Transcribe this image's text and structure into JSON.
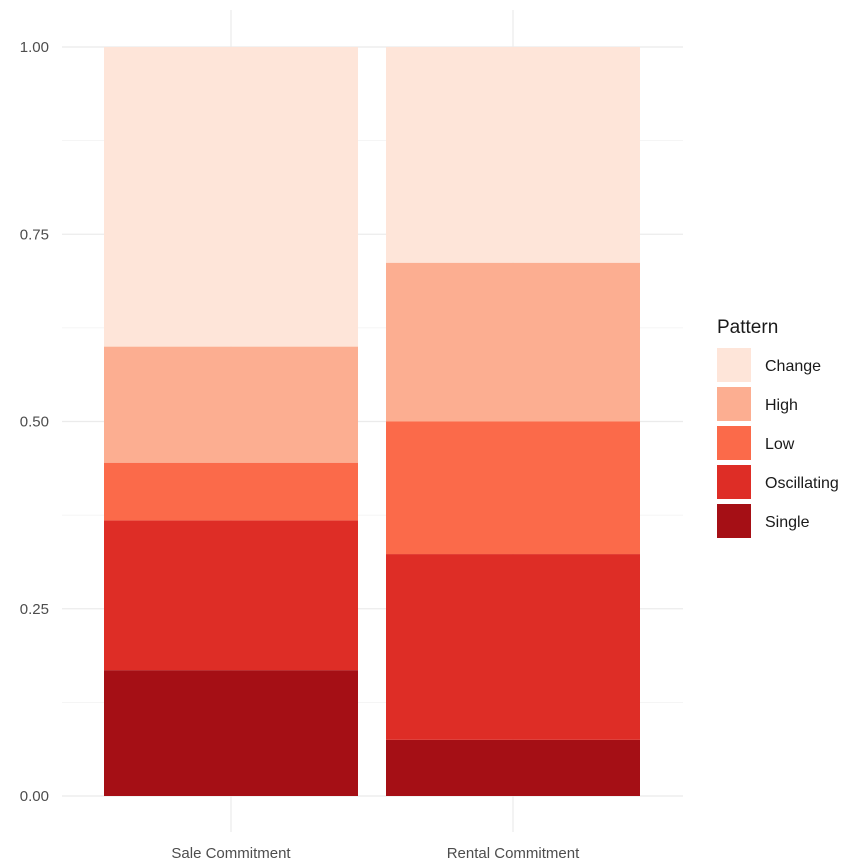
{
  "chart_data": {
    "type": "bar",
    "stacked": true,
    "categories": [
      "Sale Commitment",
      "Rental Commitment"
    ],
    "series": [
      {
        "name": "Single",
        "color": "#a50f15",
        "values": [
          0.168,
          0.075
        ]
      },
      {
        "name": "Oscillating",
        "color": "#de2d26",
        "values": [
          0.2,
          0.248
        ]
      },
      {
        "name": "Low",
        "color": "#fb6a4a",
        "values": [
          0.077,
          0.177
        ]
      },
      {
        "name": "High",
        "color": "#fcae91",
        "values": [
          0.155,
          0.212
        ]
      },
      {
        "name": "Change",
        "color": "#fee5d9",
        "values": [
          0.4,
          0.288
        ]
      }
    ],
    "y_ticks": [
      "0.00",
      "0.25",
      "0.50",
      "0.75",
      "1.00"
    ],
    "ylim": [
      0,
      1
    ],
    "grid": true,
    "legend": {
      "title": "Pattern",
      "placement": "right",
      "items": [
        "Change",
        "High",
        "Low",
        "Oscillating",
        "Single"
      ]
    }
  }
}
